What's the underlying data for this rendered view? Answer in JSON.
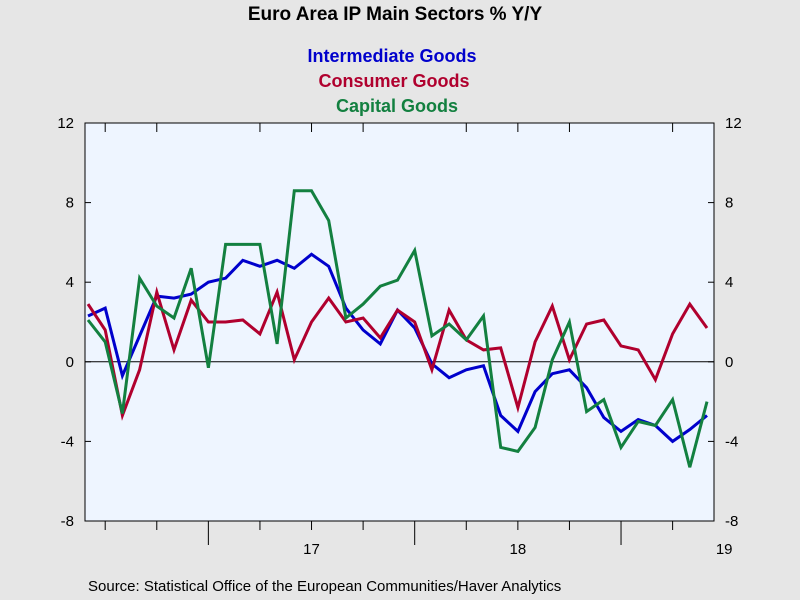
{
  "chart_data": {
    "type": "line",
    "title": "Euro Area IP Main Sectors % Y/Y",
    "source": "Source:  Statistical Office of the European Communities/Haver Analytics",
    "ylim": [
      -8,
      12
    ],
    "y_ticks": [
      -8,
      -4,
      0,
      4,
      8,
      12
    ],
    "y_tick_labels": [
      "-8",
      "-4",
      "0",
      "4",
      "8",
      "12"
    ],
    "x_start": "2016-06",
    "x_end": "2019-06",
    "x_year_labels": [
      {
        "label": "17",
        "month": "2017-07"
      },
      {
        "label": "18",
        "month": "2018-07"
      },
      {
        "label": "19",
        "month": "2019-07"
      }
    ],
    "grid": false,
    "zero_line": true,
    "legend_position": "top-center",
    "months": [
      "2016-06",
      "2016-07",
      "2016-08",
      "2016-09",
      "2016-10",
      "2016-11",
      "2016-12",
      "2017-01",
      "2017-02",
      "2017-03",
      "2017-04",
      "2017-05",
      "2017-06",
      "2017-07",
      "2017-08",
      "2017-09",
      "2017-10",
      "2017-11",
      "2017-12",
      "2018-01",
      "2018-02",
      "2018-03",
      "2018-04",
      "2018-05",
      "2018-06",
      "2018-07",
      "2018-08",
      "2018-09",
      "2018-10",
      "2018-11",
      "2018-12",
      "2019-01",
      "2019-02",
      "2019-03",
      "2019-04",
      "2019-05",
      "2019-06"
    ],
    "series": [
      {
        "name": "Intermediate Goods",
        "color": "#0000cc",
        "values": [
          2.3,
          2.7,
          -0.7,
          1.3,
          3.3,
          3.2,
          3.4,
          4.0,
          4.2,
          5.1,
          4.8,
          5.1,
          4.7,
          5.4,
          4.8,
          2.7,
          1.6,
          0.9,
          2.6,
          1.7,
          -0.1,
          -0.8,
          -0.4,
          -0.2,
          -2.7,
          -3.5,
          -1.5,
          -0.6,
          -0.4,
          -1.3,
          -2.8,
          -3.5,
          -2.9,
          -3.2,
          -4.0,
          -3.4,
          -2.7
        ]
      },
      {
        "name": "Consumer Goods",
        "color": "#b0002e",
        "values": [
          2.9,
          1.6,
          -2.7,
          -0.4,
          3.5,
          0.6,
          3.1,
          2.0,
          2.0,
          2.1,
          1.4,
          3.5,
          0.1,
          2.0,
          3.2,
          2.0,
          2.2,
          1.2,
          2.6,
          2.0,
          -0.4,
          2.6,
          1.1,
          0.6,
          0.7,
          -2.3,
          1.0,
          2.8,
          0.1,
          1.9,
          2.1,
          0.8,
          0.6,
          -0.9,
          1.4,
          2.9,
          1.7
        ]
      },
      {
        "name": "Capital Goods",
        "color": "#138040",
        "values": [
          2.1,
          1.0,
          -2.6,
          4.2,
          2.8,
          2.2,
          4.7,
          -0.3,
          5.9,
          5.9,
          5.9,
          0.9,
          8.6,
          8.6,
          7.1,
          2.2,
          2.9,
          3.8,
          4.1,
          5.6,
          1.3,
          1.9,
          1.1,
          2.3,
          -4.3,
          -4.5,
          -3.3,
          0.1,
          2.0,
          -2.5,
          -1.9,
          -4.3,
          -3.0,
          -3.2,
          -1.9,
          -5.3,
          -2.0
        ]
      }
    ]
  }
}
